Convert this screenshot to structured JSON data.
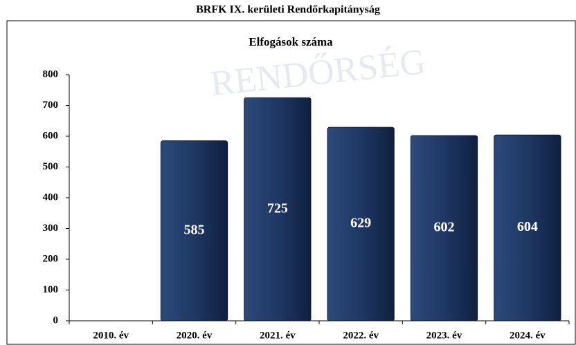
{
  "chart_data": {
    "type": "bar",
    "title": "BRFK IX. kerületi Rendőrkapitányság",
    "subtitle": "Elfogások száma",
    "watermark": "RENDŐRSÉG",
    "categories": [
      "2010. év",
      "2020. év",
      "2021. év",
      "2022. év",
      "2023. év",
      "2024. év"
    ],
    "values": [
      null,
      585,
      725,
      629,
      602,
      604
    ],
    "color": "#1f3864",
    "ylim": [
      0,
      800
    ],
    "yticks": [
      0,
      100,
      200,
      300,
      400,
      500,
      600,
      700,
      800
    ],
    "grid": false
  }
}
